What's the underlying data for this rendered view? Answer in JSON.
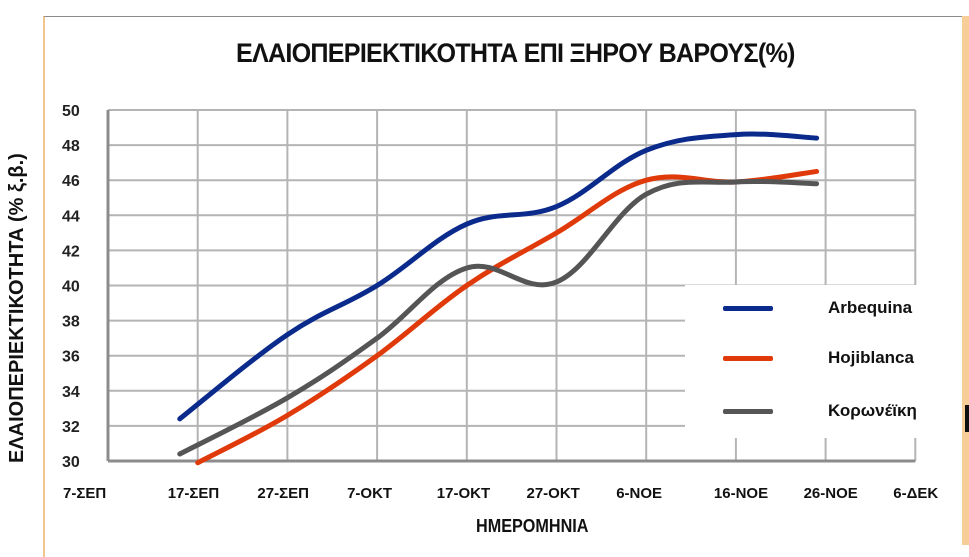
{
  "chart_data": {
    "type": "line",
    "title": "ΕΛΑΙΟΠΕΡΙΕΚΤΙΚΟΤΗΤΑ ΕΠΙ ΞΗΡΟΥ ΒΑΡΟΥΣ(%)",
    "xlabel": "ΗΜΕΡΟΜΗΝΙΑ",
    "ylabel": "ΕΛΑΙΟΠΕΡΙΕΚΤΙΚΟΤΗΤΑ (% ξ.β.)",
    "ylim": [
      30,
      50
    ],
    "yticks": [
      "50",
      "48",
      "46",
      "44",
      "42",
      "40",
      "38",
      "36",
      "34",
      "32",
      "30"
    ],
    "categories": [
      "7-ΣΕΠ",
      "17-ΣΕΠ",
      "27-ΣΕΠ",
      "7-ΟΚΤ",
      "17-ΟΚΤ",
      "27-ΟΚΤ",
      "6-ΝΟΕ",
      "16-ΝΟΕ",
      "26-ΝΟΕ",
      "6-ΔΕΚ"
    ],
    "grid": true,
    "legend_position": "lower right (inside plot)",
    "series": [
      {
        "name": "Arbequina",
        "color": "#0a2a8c",
        "points": [
          [
            "15-ΣΕΠ",
            32.4
          ],
          [
            "27-ΣΕΠ",
            37.2
          ],
          [
            "7-ΟΚΤ",
            40.0
          ],
          [
            "17-ΟΚΤ",
            43.5
          ],
          [
            "27-ΟΚΤ",
            44.5
          ],
          [
            "6-ΝΟΕ",
            47.7
          ],
          [
            "16-ΝΟΕ",
            48.6
          ],
          [
            "25-ΝΟΕ",
            48.4
          ]
        ]
      },
      {
        "name": "Hojiblanca",
        "color": "#e03a0a",
        "points": [
          [
            "17-ΣΕΠ",
            29.9
          ],
          [
            "27-ΣΕΠ",
            32.6
          ],
          [
            "7-ΟΚΤ",
            36.0
          ],
          [
            "17-ΟΚΤ",
            40.0
          ],
          [
            "27-ΟΚΤ",
            43.0
          ],
          [
            "6-ΝΟΕ",
            46.0
          ],
          [
            "16-ΝΟΕ",
            45.9
          ],
          [
            "25-ΝΟΕ",
            46.5
          ]
        ]
      },
      {
        "name": "Κορωνέϊκη",
        "color": "#555555",
        "points": [
          [
            "15-ΣΕΠ",
            30.4
          ],
          [
            "27-ΣΕΠ",
            33.6
          ],
          [
            "7-ΟΚΤ",
            37.0
          ],
          [
            "17-ΟΚΤ",
            41.0
          ],
          [
            "27-ΟΚΤ",
            40.2
          ],
          [
            "6-ΝΟΕ",
            45.2
          ],
          [
            "16-ΝΟΕ",
            45.9
          ],
          [
            "25-ΝΟΕ",
            45.8
          ]
        ]
      }
    ]
  },
  "legend": [
    {
      "label": "Arbequina",
      "color": "#0a2a8c"
    },
    {
      "label": "Hojiblanca",
      "color": "#e03a0a"
    },
    {
      "label": "Κορωνέϊκη",
      "color": "#555555"
    }
  ]
}
